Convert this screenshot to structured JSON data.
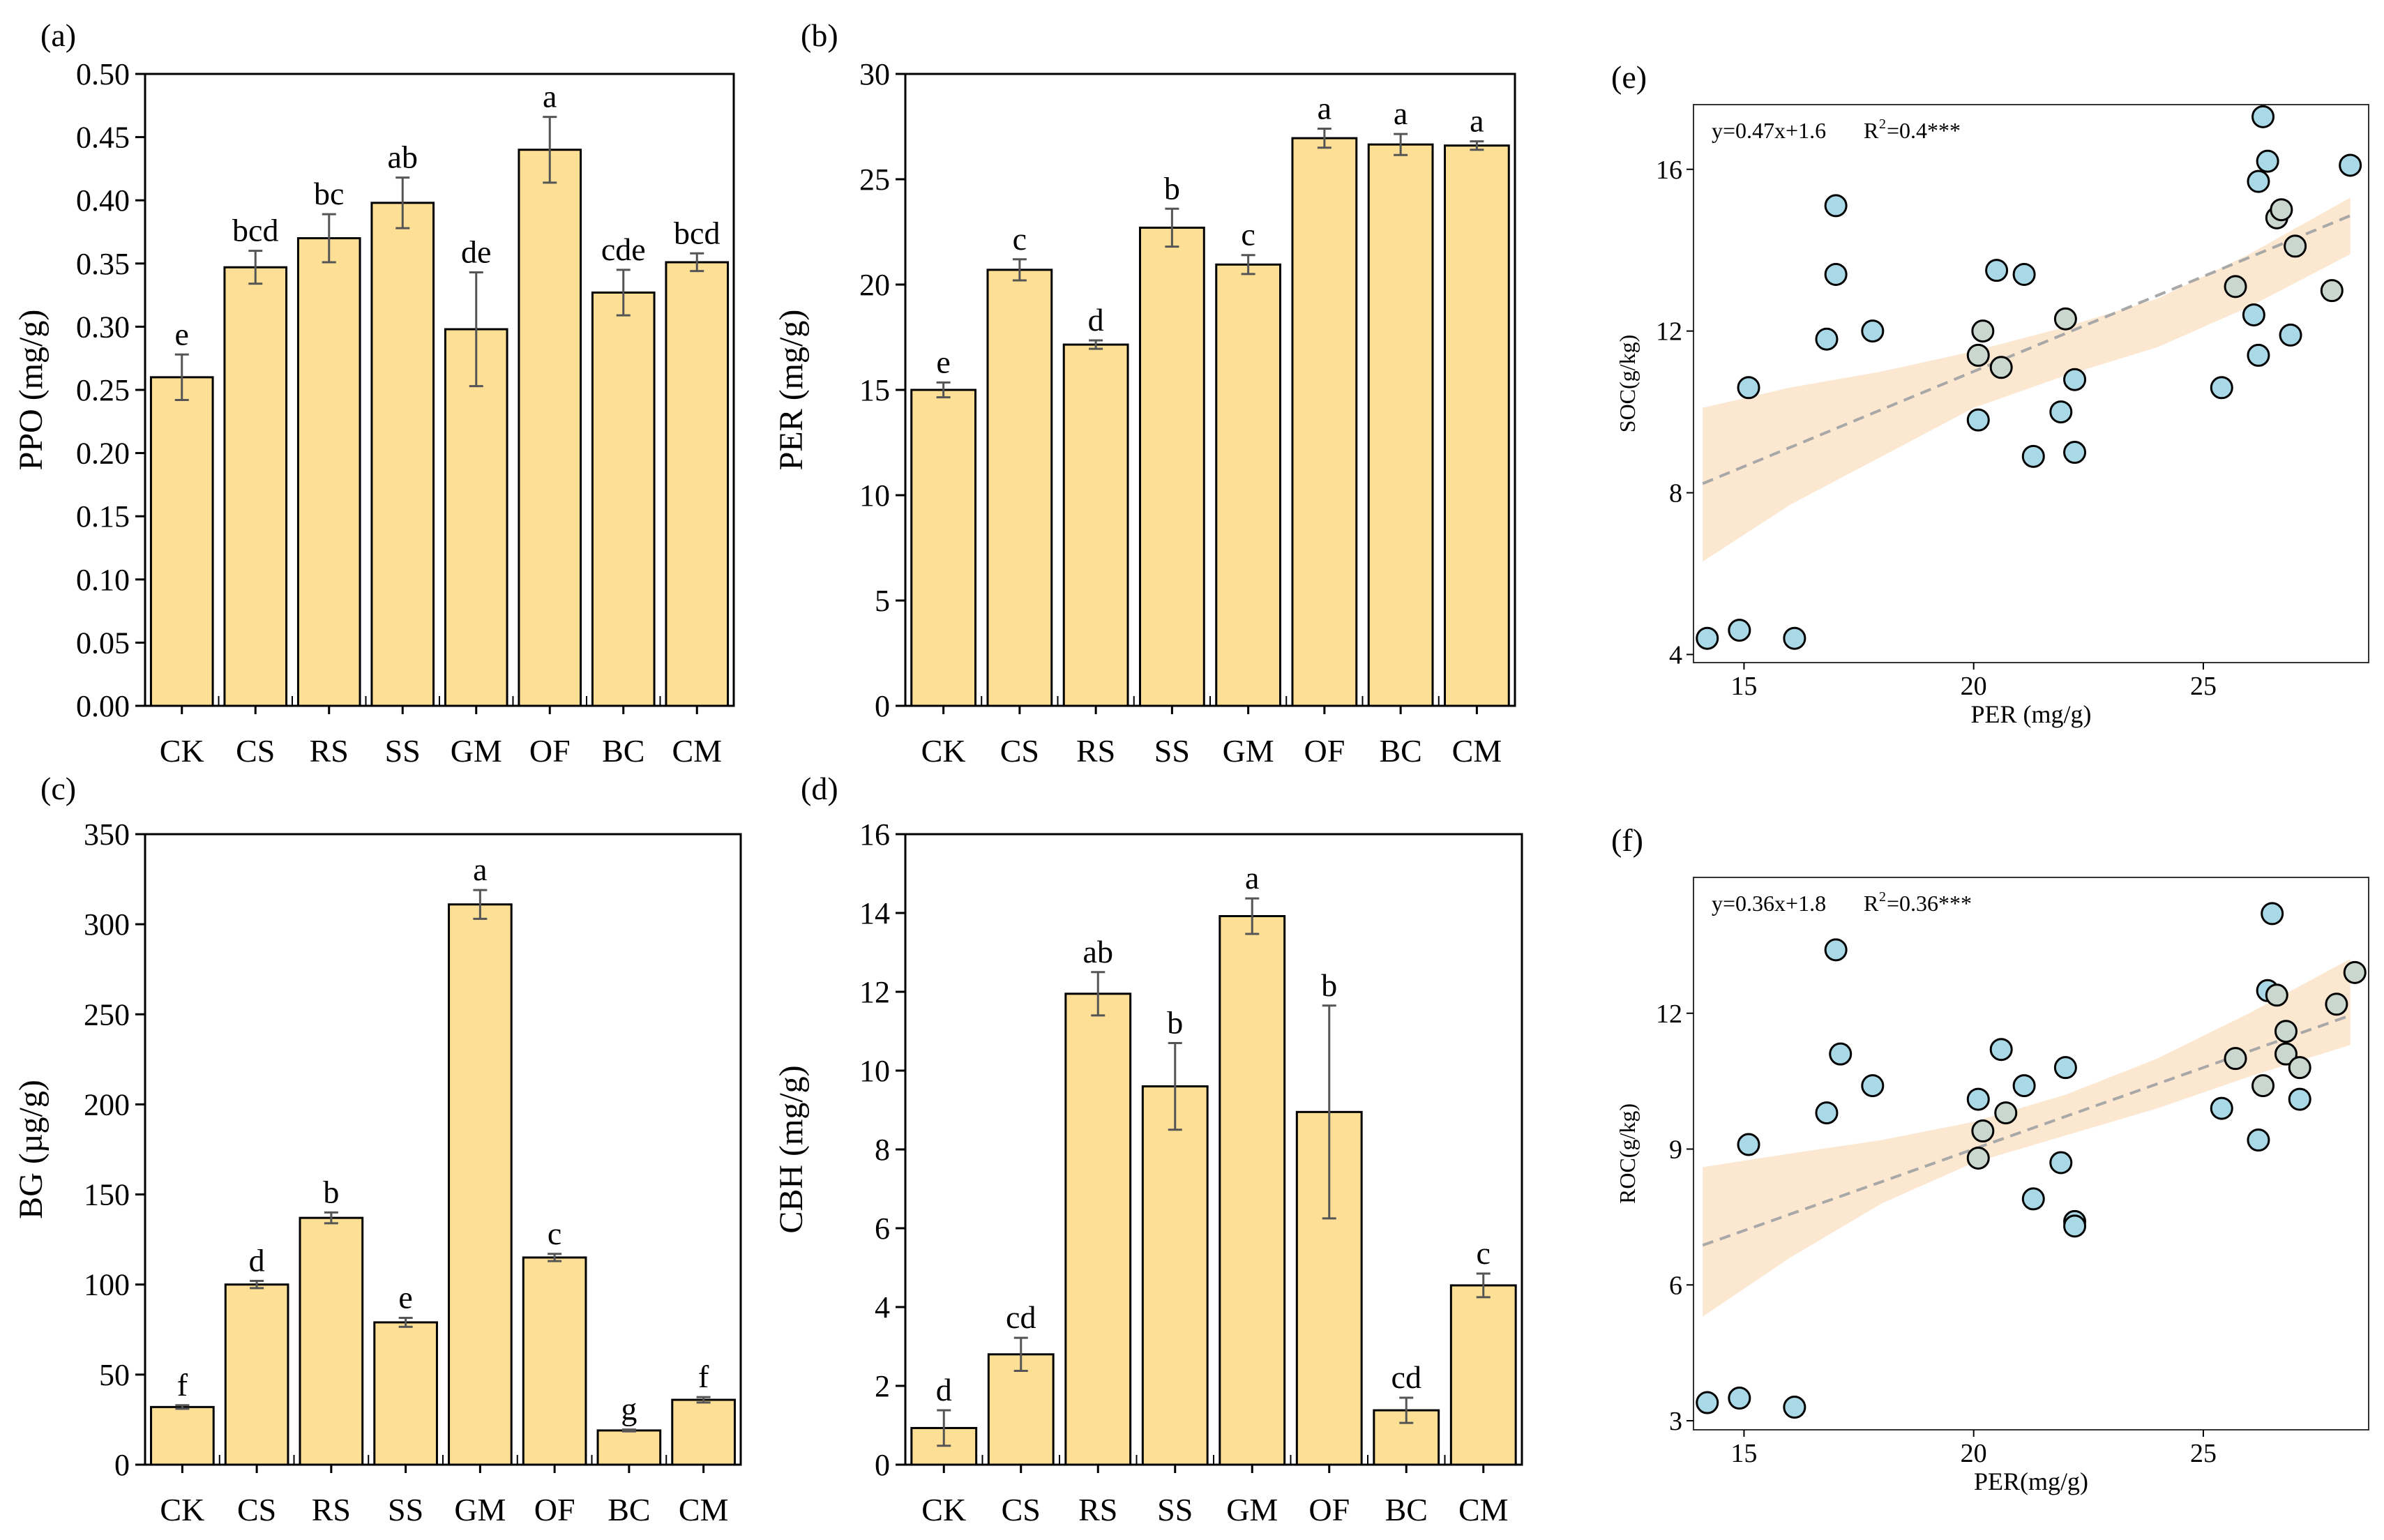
{
  "figure": {
    "colors": {
      "bar_fill": "#FDE096",
      "bar_stroke": "#000000",
      "error": "#555555",
      "point_fill": "#A9D8E6",
      "point_fill_alt": "#C9D7CF",
      "point_stroke": "#000000",
      "band": "#FCE3C8",
      "trend": "#A8A8A8"
    }
  },
  "chart_data": [
    {
      "id": "a",
      "panel_label": "(a)",
      "type": "bar",
      "ylabel": "PPO (mg/g)",
      "ylim": [
        0,
        0.5
      ],
      "yticks": [
        "0.00",
        "0.05",
        "0.10",
        "0.15",
        "0.20",
        "0.25",
        "0.30",
        "0.35",
        "0.40",
        "0.45",
        "0.50"
      ],
      "categories": [
        "CK",
        "CS",
        "RS",
        "SS",
        "GM",
        "OF",
        "BC",
        "CM"
      ],
      "values": [
        0.26,
        0.347,
        0.37,
        0.398,
        0.298,
        0.44,
        0.327,
        0.351
      ],
      "errors": [
        0.018,
        0.013,
        0.019,
        0.02,
        0.045,
        0.026,
        0.018,
        0.007
      ],
      "letters": [
        "e",
        "bcd",
        "bc",
        "ab",
        "de",
        "a",
        "cde",
        "bcd"
      ]
    },
    {
      "id": "b",
      "panel_label": "(b)",
      "type": "bar",
      "ylabel": "PER (mg/g)",
      "ylim": [
        0,
        30
      ],
      "yticks": [
        "0",
        "5",
        "10",
        "15",
        "20",
        "25",
        "30"
      ],
      "categories": [
        "CK",
        "CS",
        "RS",
        "SS",
        "GM",
        "OF",
        "BC",
        "CM"
      ],
      "values": [
        15.0,
        20.7,
        17.15,
        22.7,
        20.95,
        26.95,
        26.65,
        26.6
      ],
      "errors": [
        0.35,
        0.5,
        0.2,
        0.9,
        0.45,
        0.45,
        0.5,
        0.2
      ],
      "letters": [
        "e",
        "c",
        "d",
        "b",
        "c",
        "a",
        "a",
        "a"
      ]
    },
    {
      "id": "c",
      "panel_label": "(c)",
      "type": "bar",
      "ylabel": "BG (µg/g)",
      "ylim": [
        0,
        350
      ],
      "yticks": [
        "0",
        "50",
        "100",
        "150",
        "200",
        "250",
        "300",
        "350"
      ],
      "categories": [
        "CK",
        "CS",
        "RS",
        "SS",
        "GM",
        "OF",
        "BC",
        "CM"
      ],
      "values": [
        32,
        100,
        137,
        79,
        311,
        115,
        19,
        36
      ],
      "errors": [
        1,
        2,
        3,
        2.5,
        8,
        2,
        0.5,
        1.5
      ],
      "letters": [
        "f",
        "d",
        "b",
        "e",
        "a",
        "c",
        "g",
        "f"
      ]
    },
    {
      "id": "d",
      "panel_label": "(d)",
      "type": "bar",
      "ylabel": "CBH (mg/g)",
      "ylim": [
        0,
        16
      ],
      "yticks": [
        "0",
        "2",
        "4",
        "6",
        "8",
        "10",
        "12",
        "14",
        "16"
      ],
      "categories": [
        "CK",
        "CS",
        "RS",
        "SS",
        "GM",
        "OF",
        "BC",
        "CM"
      ],
      "values": [
        0.93,
        2.8,
        11.95,
        9.6,
        13.92,
        8.95,
        1.38,
        4.55
      ],
      "errors": [
        0.45,
        0.42,
        0.55,
        1.1,
        0.45,
        2.7,
        0.32,
        0.3
      ],
      "letters": [
        "d",
        "cd",
        "ab",
        "b",
        "a",
        "b",
        "cd",
        "c"
      ]
    },
    {
      "id": "e",
      "panel_label": "(e)",
      "type": "scatter",
      "xlabel": "PER (mg/g)",
      "ylabel": "SOC(g/kg)",
      "xlim": [
        13.9,
        28.6
      ],
      "ylim": [
        3.8,
        17.6
      ],
      "xticks": [
        15,
        20,
        25
      ],
      "yticks": [
        4,
        8,
        12,
        16
      ],
      "equation": "y=0.47x+1.6",
      "r2_prefix": "R",
      "r2_sup": "2",
      "r2_value": "=0.4***",
      "trend": {
        "slope": 0.47,
        "intercept": 1.6,
        "x0": 14.1,
        "x1": 28.2
      },
      "band": {
        "upper": [
          [
            14.1,
            10.1
          ],
          [
            16,
            10.6
          ],
          [
            18,
            11.0
          ],
          [
            20,
            11.5
          ],
          [
            22,
            12.1
          ],
          [
            24,
            12.8
          ],
          [
            26,
            13.9
          ],
          [
            28.2,
            15.3
          ]
        ],
        "lower": [
          [
            14.1,
            6.3
          ],
          [
            16,
            7.7
          ],
          [
            18,
            8.9
          ],
          [
            20,
            10.1
          ],
          [
            22,
            10.9
          ],
          [
            24,
            11.6
          ],
          [
            26,
            12.6
          ],
          [
            28.2,
            13.9
          ]
        ]
      },
      "points": [
        [
          14.2,
          4.4,
          0
        ],
        [
          14.9,
          4.6,
          0
        ],
        [
          15.1,
          10.6,
          0
        ],
        [
          16.1,
          4.4,
          0
        ],
        [
          16.8,
          11.8,
          0
        ],
        [
          17.0,
          15.1,
          0
        ],
        [
          17.0,
          13.4,
          0
        ],
        [
          17.8,
          12.0,
          0
        ],
        [
          20.1,
          9.8,
          0
        ],
        [
          20.1,
          11.4,
          1
        ],
        [
          20.2,
          12.0,
          1
        ],
        [
          20.5,
          13.5,
          0
        ],
        [
          20.6,
          11.1,
          1
        ],
        [
          21.1,
          13.4,
          0
        ],
        [
          21.3,
          8.9,
          0
        ],
        [
          21.9,
          10.0,
          0
        ],
        [
          22.0,
          12.3,
          1
        ],
        [
          22.2,
          10.8,
          0
        ],
        [
          22.2,
          9.0,
          0
        ],
        [
          25.4,
          10.6,
          0
        ],
        [
          25.7,
          13.1,
          1
        ],
        [
          26.1,
          12.4,
          0
        ],
        [
          26.2,
          11.4,
          0
        ],
        [
          26.2,
          15.7,
          0
        ],
        [
          26.3,
          17.3,
          0
        ],
        [
          26.4,
          16.2,
          0
        ],
        [
          26.6,
          14.8,
          1
        ],
        [
          26.7,
          15.0,
          1
        ],
        [
          26.9,
          11.9,
          0
        ],
        [
          27.0,
          14.1,
          1
        ],
        [
          27.8,
          13.0,
          1
        ],
        [
          28.2,
          16.1,
          0
        ]
      ]
    },
    {
      "id": "f",
      "panel_label": "(f)",
      "type": "scatter",
      "xlabel": "PER(mg/g)",
      "ylabel": "ROC(g/kg)",
      "xlim": [
        13.9,
        28.6
      ],
      "ylim": [
        2.8,
        15.0
      ],
      "xticks": [
        15,
        20,
        25
      ],
      "yticks": [
        3,
        6,
        9,
        12
      ],
      "equation": "y=0.36x+1.8",
      "r2_prefix": "R",
      "r2_sup": "2",
      "r2_value": "=0.36***",
      "trend": {
        "slope": 0.36,
        "intercept": 1.8,
        "x0": 14.1,
        "x1": 28.2
      },
      "band": {
        "upper": [
          [
            14.1,
            8.6
          ],
          [
            16,
            8.9
          ],
          [
            18,
            9.2
          ],
          [
            20,
            9.6
          ],
          [
            22,
            10.2
          ],
          [
            24,
            11.0
          ],
          [
            26,
            12.0
          ],
          [
            28.2,
            13.2
          ]
        ],
        "lower": [
          [
            14.1,
            5.3
          ],
          [
            16,
            6.6
          ],
          [
            18,
            7.8
          ],
          [
            20,
            8.7
          ],
          [
            22,
            9.3
          ],
          [
            24,
            9.9
          ],
          [
            26,
            10.6
          ],
          [
            28.2,
            11.3
          ]
        ]
      },
      "points": [
        [
          14.2,
          3.4,
          0
        ],
        [
          14.9,
          3.5,
          0
        ],
        [
          15.1,
          9.1,
          0
        ],
        [
          16.1,
          3.3,
          0
        ],
        [
          16.8,
          9.8,
          0
        ],
        [
          17.0,
          13.4,
          0
        ],
        [
          17.1,
          11.1,
          0
        ],
        [
          17.8,
          10.4,
          0
        ],
        [
          20.1,
          8.8,
          1
        ],
        [
          20.1,
          10.1,
          0
        ],
        [
          20.2,
          9.4,
          1
        ],
        [
          20.6,
          11.2,
          0
        ],
        [
          20.7,
          9.8,
          1
        ],
        [
          21.1,
          10.4,
          0
        ],
        [
          21.3,
          7.9,
          0
        ],
        [
          21.9,
          8.7,
          0
        ],
        [
          22.0,
          10.8,
          0
        ],
        [
          22.2,
          7.4,
          0
        ],
        [
          22.2,
          7.3,
          0
        ],
        [
          25.4,
          9.9,
          0
        ],
        [
          25.7,
          11.0,
          1
        ],
        [
          26.2,
          9.2,
          0
        ],
        [
          26.3,
          10.4,
          1
        ],
        [
          26.4,
          12.5,
          0
        ],
        [
          26.5,
          14.2,
          0
        ],
        [
          26.6,
          12.4,
          1
        ],
        [
          26.8,
          11.6,
          1
        ],
        [
          26.8,
          11.1,
          1
        ],
        [
          27.1,
          10.1,
          0
        ],
        [
          27.1,
          10.8,
          1
        ],
        [
          27.9,
          12.2,
          1
        ],
        [
          28.3,
          12.9,
          1
        ]
      ]
    }
  ]
}
